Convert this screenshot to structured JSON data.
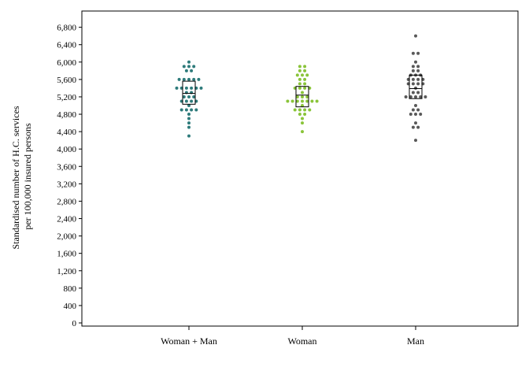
{
  "chart_data": {
    "type": "scatter",
    "subtype": "dot-strip-with-box",
    "title": "",
    "xlabel": "",
    "ylabel_lines": [
      "Standardised number of H.C. services",
      "per 100,000 insured persons"
    ],
    "ylim": [
      0,
      7200
    ],
    "yticks": [
      0,
      400,
      800,
      1200,
      1600,
      2000,
      2400,
      2800,
      3200,
      3600,
      4000,
      4400,
      4800,
      5200,
      5600,
      6000,
      6400,
      6800
    ],
    "ytick_labels": [
      "0",
      "400",
      "800",
      "1,200",
      "1,600",
      "2,000",
      "2,400",
      "2,800",
      "3,200",
      "3,600",
      "4,000",
      "4,400",
      "4,800",
      "5,200",
      "5,600",
      "6,000",
      "6,400",
      "6,800"
    ],
    "categories": [
      "Woman + Man",
      "Woman",
      "Man"
    ],
    "grid": false,
    "legend": "none",
    "series": [
      {
        "category": "Woman + Man",
        "color": "#2e7b7b",
        "box": {
          "q1": 5030,
          "median": 5280,
          "q3": 5560
        },
        "values": [
          6000,
          5900,
          5900,
          5900,
          5800,
          5800,
          5600,
          5600,
          5600,
          5600,
          5600,
          5400,
          5400,
          5400,
          5400,
          5400,
          5400,
          5300,
          5300,
          5200,
          5200,
          5200,
          5100,
          5100,
          5100,
          5100,
          5000,
          4900,
          4900,
          4900,
          4900,
          4800,
          4700,
          4600,
          4500,
          4300
        ]
      },
      {
        "category": "Woman",
        "color": "#8ac43a",
        "box": {
          "q1": 4970,
          "median": 5240,
          "q3": 5440
        },
        "values": [
          5900,
          5900,
          5800,
          5800,
          5700,
          5700,
          5700,
          5600,
          5600,
          5500,
          5500,
          5400,
          5400,
          5400,
          5400,
          5300,
          5200,
          5200,
          5200,
          5100,
          5100,
          5100,
          5100,
          5100,
          5100,
          5100,
          5000,
          4900,
          4900,
          4900,
          4900,
          4800,
          4800,
          4700,
          4600,
          4400
        ]
      },
      {
        "category": "Man",
        "color": "#595959",
        "box": {
          "q1": 5160,
          "median": 5390,
          "q3": 5700
        },
        "values": [
          6600,
          6200,
          6200,
          6000,
          5900,
          5900,
          5800,
          5800,
          5700,
          5700,
          5700,
          5600,
          5600,
          5600,
          5600,
          5500,
          5500,
          5500,
          5500,
          5400,
          5300,
          5300,
          5200,
          5200,
          5200,
          5200,
          5200,
          5000,
          4900,
          4900,
          4800,
          4800,
          4800,
          4600,
          4500,
          4500,
          4200
        ]
      }
    ]
  }
}
